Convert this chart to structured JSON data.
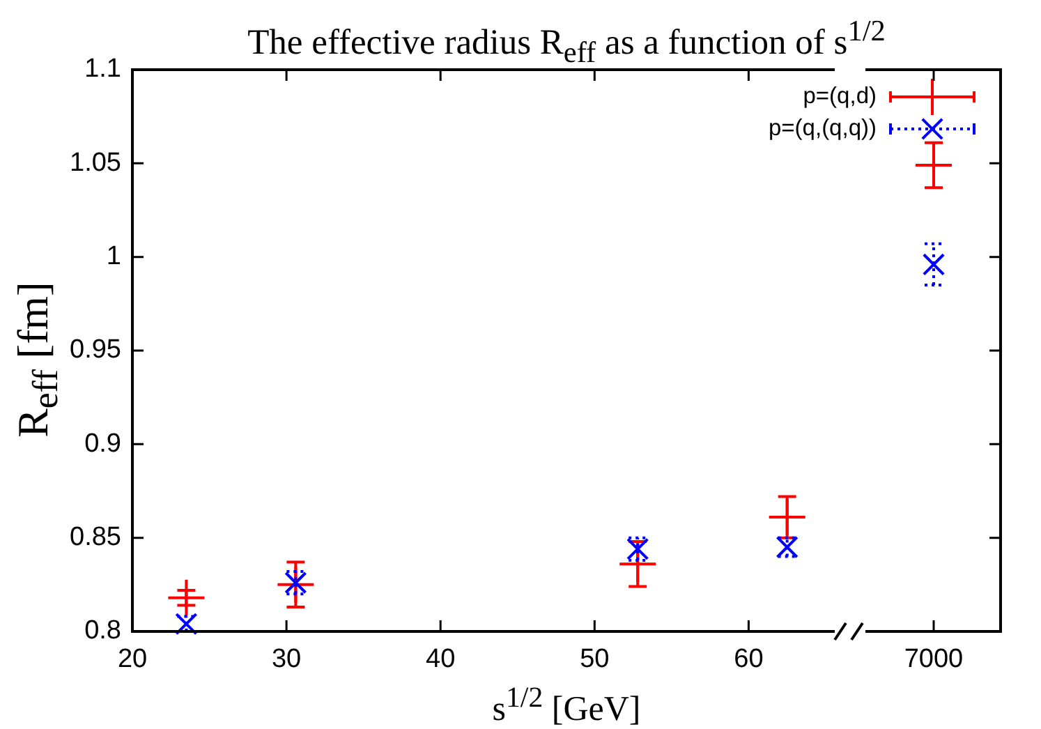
{
  "chart_data": [
    {
      "type": "scatter",
      "title": "The effective radius R$_{eff}$ as a function of s$^{1/2}$",
      "xlabel": "s$^{1/2}$ [GeV]",
      "ylabel": "R$_{eff}$ [fm]",
      "x": [
        23.5,
        30.6,
        52.8,
        62.5
      ],
      "xlim": [
        20,
        65.5
      ],
      "xticks": [
        20,
        30,
        40,
        50,
        60
      ],
      "ylim": [
        0.8,
        1.1
      ],
      "yticks": [
        0.8,
        0.85,
        0.9,
        0.95,
        1,
        1.05,
        1.1
      ],
      "legend": "top right",
      "series": [
        {
          "name": "p=(q,d)",
          "color": "#ff0000",
          "values": [
            0.818,
            0.825,
            0.836,
            0.861
          ],
          "errors": [
            0.004,
            0.012,
            0.012,
            0.011
          ],
          "line_style": "solid"
        },
        {
          "name": "p=(q,(q,q))",
          "color": "#0000ff",
          "values": [
            0.804,
            0.826,
            0.844,
            0.845
          ],
          "errors": [
            0.004,
            0.006,
            0.006,
            0.005
          ],
          "marker": "cross",
          "line_style": "dotted"
        }
      ]
    },
    {
      "type": "scatter",
      "categories": [
        "7000"
      ],
      "ylim": [
        0.8,
        1.1
      ],
      "yticks": [
        0.8,
        0.85,
        0.9,
        0.95,
        1,
        1.05,
        1.1
      ],
      "tick_labels": "x",
      "series": [
        {
          "color": "#ff0000",
          "values": [
            1.049
          ],
          "errors": [
            0.012
          ],
          "line_style": "solid"
        },
        {
          "color": "#0000ff",
          "values": [
            0.996
          ],
          "errors": [
            0.011
          ],
          "marker": "cross",
          "line_style": "dotted"
        }
      ]
    }
  ]
}
